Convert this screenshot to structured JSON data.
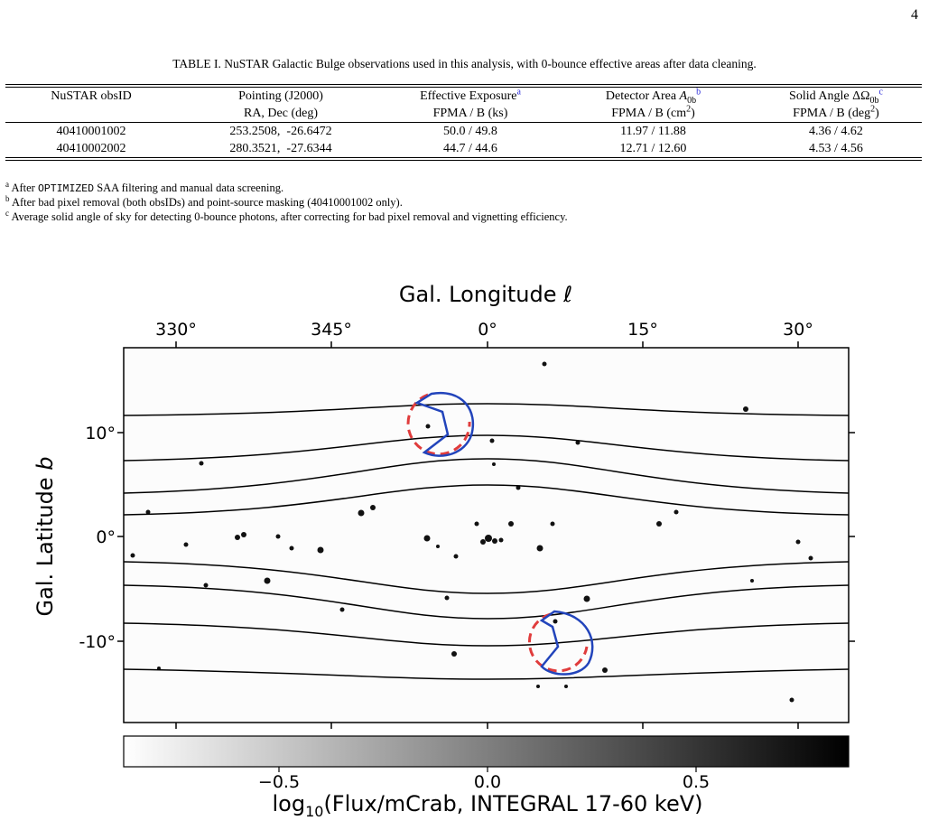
{
  "page_number": "4",
  "table": {
    "caption": "TABLE I. NuSTAR Galactic Bulge observations used in this analysis, with 0-bounce effective areas after data cleaning.",
    "header": [
      {
        "text": "NuSTAR obsID"
      },
      {
        "text": "Pointing (J2000)"
      },
      {
        "text": "Effective Exposure",
        "note": "a"
      },
      {
        "text": "Detector Area ",
        "symbol": "A",
        "sub": "0b",
        "note": "b"
      },
      {
        "text": "Solid Angle ",
        "symbol": "ΔΩ",
        "sub": "0b",
        "note": "c"
      }
    ],
    "units": [
      {
        "text": "RA, Dec (deg)"
      },
      {
        "text": "FPMA / B (ks)"
      },
      {
        "text": "FPMA / B (cm",
        "sup": "2",
        "close": ")"
      },
      {
        "text": "FPMA / B (deg",
        "sup": "2",
        "close": ")"
      }
    ],
    "rows": [
      [
        "40410001002",
        "253.2508,  -26.6472",
        "50.0 / 49.8",
        "11.97 / 11.88",
        "4.36 / 4.62"
      ],
      [
        "40410002002",
        "280.3521,  -27.6344",
        "44.7 / 44.6",
        "12.71 / 12.60",
        "4.53 / 4.56"
      ]
    ],
    "footnotes": [
      {
        "mark": "a",
        "text": "After ",
        "code": "OPTIMIZED",
        "rest": " SAA filtering and manual data screening."
      },
      {
        "mark": "b",
        "text": "After bad pixel removal (both obsIDs) and point-source masking (40410001002 only)."
      },
      {
        "mark": "c",
        "text": "Average solid angle of sky for detecting 0-bounce photons, after correcting for bad pixel removal and vignetting efficiency."
      }
    ]
  },
  "figure": {
    "x_axis_label": "Gal. Longitude ℓ",
    "y_axis_label": {
      "text": "Gal. Latitude ",
      "symbol": "b"
    },
    "x_tick_labels": [
      "330°",
      "345°",
      "0°",
      "15°",
      "30°"
    ],
    "y_tick_labels": [
      "10°",
      "0°",
      "-10°"
    ],
    "colorbar_tick_labels": [
      "−0.5",
      "0.0",
      "0.5"
    ],
    "colorbar_label": {
      "text": "log",
      "sub": "10",
      "rest": "(Flux/mCrab, INTEGRAL 17-60 keV)"
    }
  }
}
